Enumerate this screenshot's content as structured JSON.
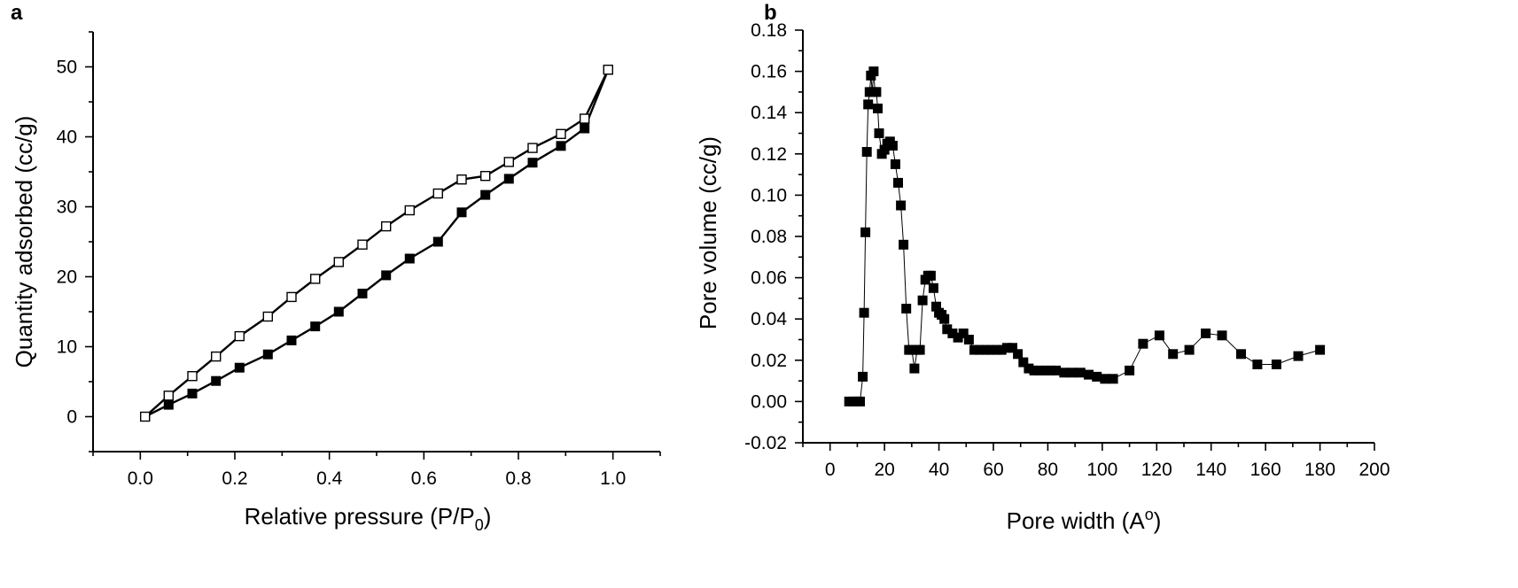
{
  "chart_data": [
    {
      "type": "line",
      "panel_label": "a",
      "xlabel_main": "Relative pressure (P/P",
      "xlabel_sub": "0",
      "xlabel_end": ")",
      "ylabel": "Quantity adsorbed (cc/g)",
      "xlim": [
        -0.1,
        1.1
      ],
      "ylim": [
        -5,
        55
      ],
      "xticks": [
        "0.0",
        "0.2",
        "0.4",
        "0.6",
        "0.8",
        "1.0"
      ],
      "yticks": [
        "0",
        "10",
        "20",
        "30",
        "40",
        "50"
      ],
      "series": [
        {
          "marker": "filled-square",
          "color": "#000000",
          "x": [
            0.01,
            0.06,
            0.11,
            0.16,
            0.21,
            0.27,
            0.32,
            0.37,
            0.42,
            0.47,
            0.52,
            0.57,
            0.63,
            0.68,
            0.73,
            0.78,
            0.83,
            0.89,
            0.94,
            0.99
          ],
          "y": [
            0,
            1.7,
            3.3,
            5.1,
            7.0,
            8.9,
            10.9,
            12.9,
            15.0,
            17.6,
            20.2,
            22.6,
            25.0,
            29.2,
            31.7,
            34.0,
            36.3,
            38.7,
            41.2,
            49.6
          ]
        },
        {
          "marker": "open-square",
          "color": "#000000",
          "x": [
            0.01,
            0.06,
            0.11,
            0.16,
            0.21,
            0.27,
            0.32,
            0.37,
            0.42,
            0.47,
            0.52,
            0.57,
            0.63,
            0.68,
            0.73,
            0.78,
            0.83,
            0.89,
            0.94,
            0.99
          ],
          "y": [
            0,
            3.0,
            5.8,
            8.6,
            11.5,
            14.3,
            17.1,
            19.7,
            22.1,
            24.6,
            27.2,
            29.5,
            31.9,
            33.9,
            34.4,
            36.4,
            38.4,
            40.4,
            42.6,
            49.6
          ]
        }
      ]
    },
    {
      "type": "line",
      "panel_label": "b",
      "xlabel_main": "Pore width (A",
      "xlabel_sup": "o",
      "xlabel_end": ")",
      "ylabel": "Pore volume (cc/g)",
      "xlim": [
        -10,
        200
      ],
      "ylim": [
        -0.02,
        0.18
      ],
      "xticks": [
        "0",
        "20",
        "40",
        "60",
        "80",
        "100",
        "120",
        "140",
        "160",
        "180",
        "200"
      ],
      "yticks": [
        "-0.02",
        "0.00",
        "0.02",
        "0.04",
        "0.06",
        "0.08",
        "0.10",
        "0.12",
        "0.14",
        "0.16",
        "0.18"
      ],
      "series": [
        {
          "marker": "filled-square",
          "color": "#000000",
          "x": [
            7,
            8.5,
            10,
            11,
            12,
            12.5,
            13,
            13.5,
            14,
            14.5,
            15,
            15.5,
            16,
            16.5,
            17,
            17.5,
            18,
            19,
            20,
            21,
            22,
            23,
            24,
            25,
            26,
            27,
            28,
            29,
            30,
            31,
            32,
            33,
            34,
            35,
            36,
            37,
            38,
            39,
            40,
            41,
            42,
            43,
            45,
            47,
            49,
            51,
            53,
            55,
            57,
            59,
            61,
            63,
            65,
            67,
            69,
            71,
            73,
            75,
            77,
            79,
            81,
            83,
            86,
            89,
            92,
            95,
            98,
            101,
            104,
            110,
            115,
            121,
            126,
            132,
            138,
            144,
            151,
            157,
            164,
            172,
            180
          ],
          "y": [
            0.0,
            0.0,
            0.0,
            0.0,
            0.012,
            0.043,
            0.082,
            0.121,
            0.144,
            0.15,
            0.158,
            0.15,
            0.16,
            0.15,
            0.15,
            0.142,
            0.13,
            0.12,
            0.122,
            0.125,
            0.126,
            0.124,
            0.115,
            0.106,
            0.095,
            0.076,
            0.045,
            0.025,
            0.025,
            0.016,
            0.025,
            0.025,
            0.049,
            0.059,
            0.061,
            0.061,
            0.055,
            0.046,
            0.043,
            0.042,
            0.04,
            0.035,
            0.033,
            0.031,
            0.033,
            0.03,
            0.025,
            0.025,
            0.025,
            0.025,
            0.025,
            0.025,
            0.026,
            0.026,
            0.023,
            0.019,
            0.016,
            0.015,
            0.015,
            0.015,
            0.015,
            0.015,
            0.014,
            0.014,
            0.014,
            0.013,
            0.012,
            0.011,
            0.011,
            0.015,
            0.028,
            0.032,
            0.023,
            0.025,
            0.033,
            0.032,
            0.023,
            0.018,
            0.018,
            0.022,
            0.025
          ]
        }
      ]
    }
  ]
}
